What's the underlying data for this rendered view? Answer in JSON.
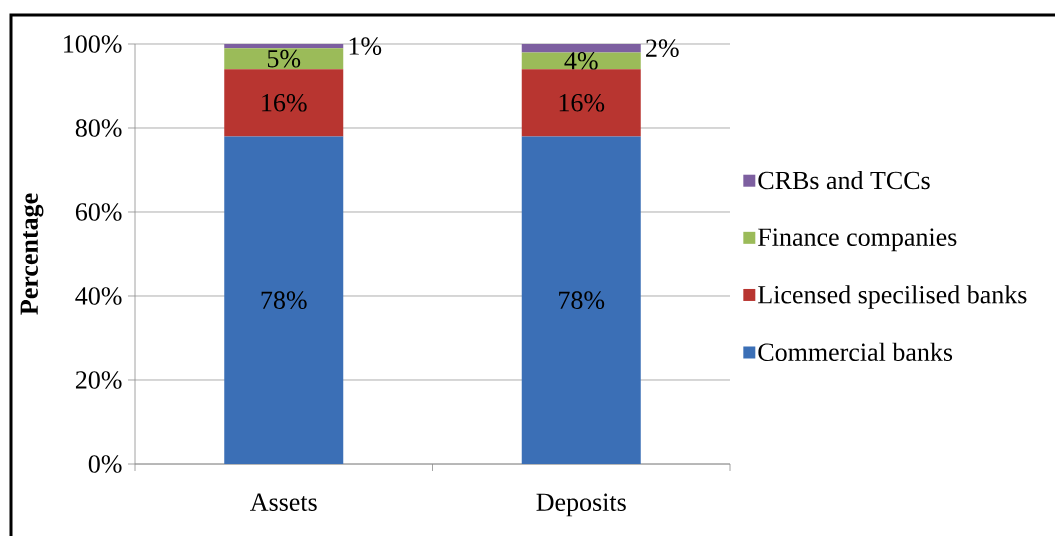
{
  "chart_data": {
    "type": "bar",
    "stacked": true,
    "ylabel": "Percentage",
    "categories": [
      "Assets",
      "Deposits"
    ],
    "series": [
      {
        "name": "Commercial banks",
        "color": "#3b6fb6",
        "values": [
          78,
          78
        ],
        "value_labels": [
          "78%",
          "78%"
        ]
      },
      {
        "name": "Licensed specilised banks",
        "color": "#b83530",
        "values": [
          16,
          16
        ],
        "value_labels": [
          "16%",
          "16%"
        ]
      },
      {
        "name": "Finance companies",
        "color": "#9bbb59",
        "values": [
          5,
          4
        ],
        "value_labels": [
          "5%",
          "4%"
        ]
      },
      {
        "name": "CRBs and TCCs",
        "color": "#7d5fa0",
        "values": [
          1,
          2
        ],
        "value_labels": [
          "1%",
          "2%"
        ]
      }
    ],
    "ylim": [
      0,
      100
    ],
    "yticks": [
      {
        "value": 0,
        "label": "0%"
      },
      {
        "value": 20,
        "label": "20%"
      },
      {
        "value": 40,
        "label": "40%"
      },
      {
        "value": 60,
        "label": "60%"
      },
      {
        "value": 80,
        "label": "80%"
      },
      {
        "value": 100,
        "label": "100%"
      }
    ],
    "grid": "y",
    "legend": "right"
  }
}
